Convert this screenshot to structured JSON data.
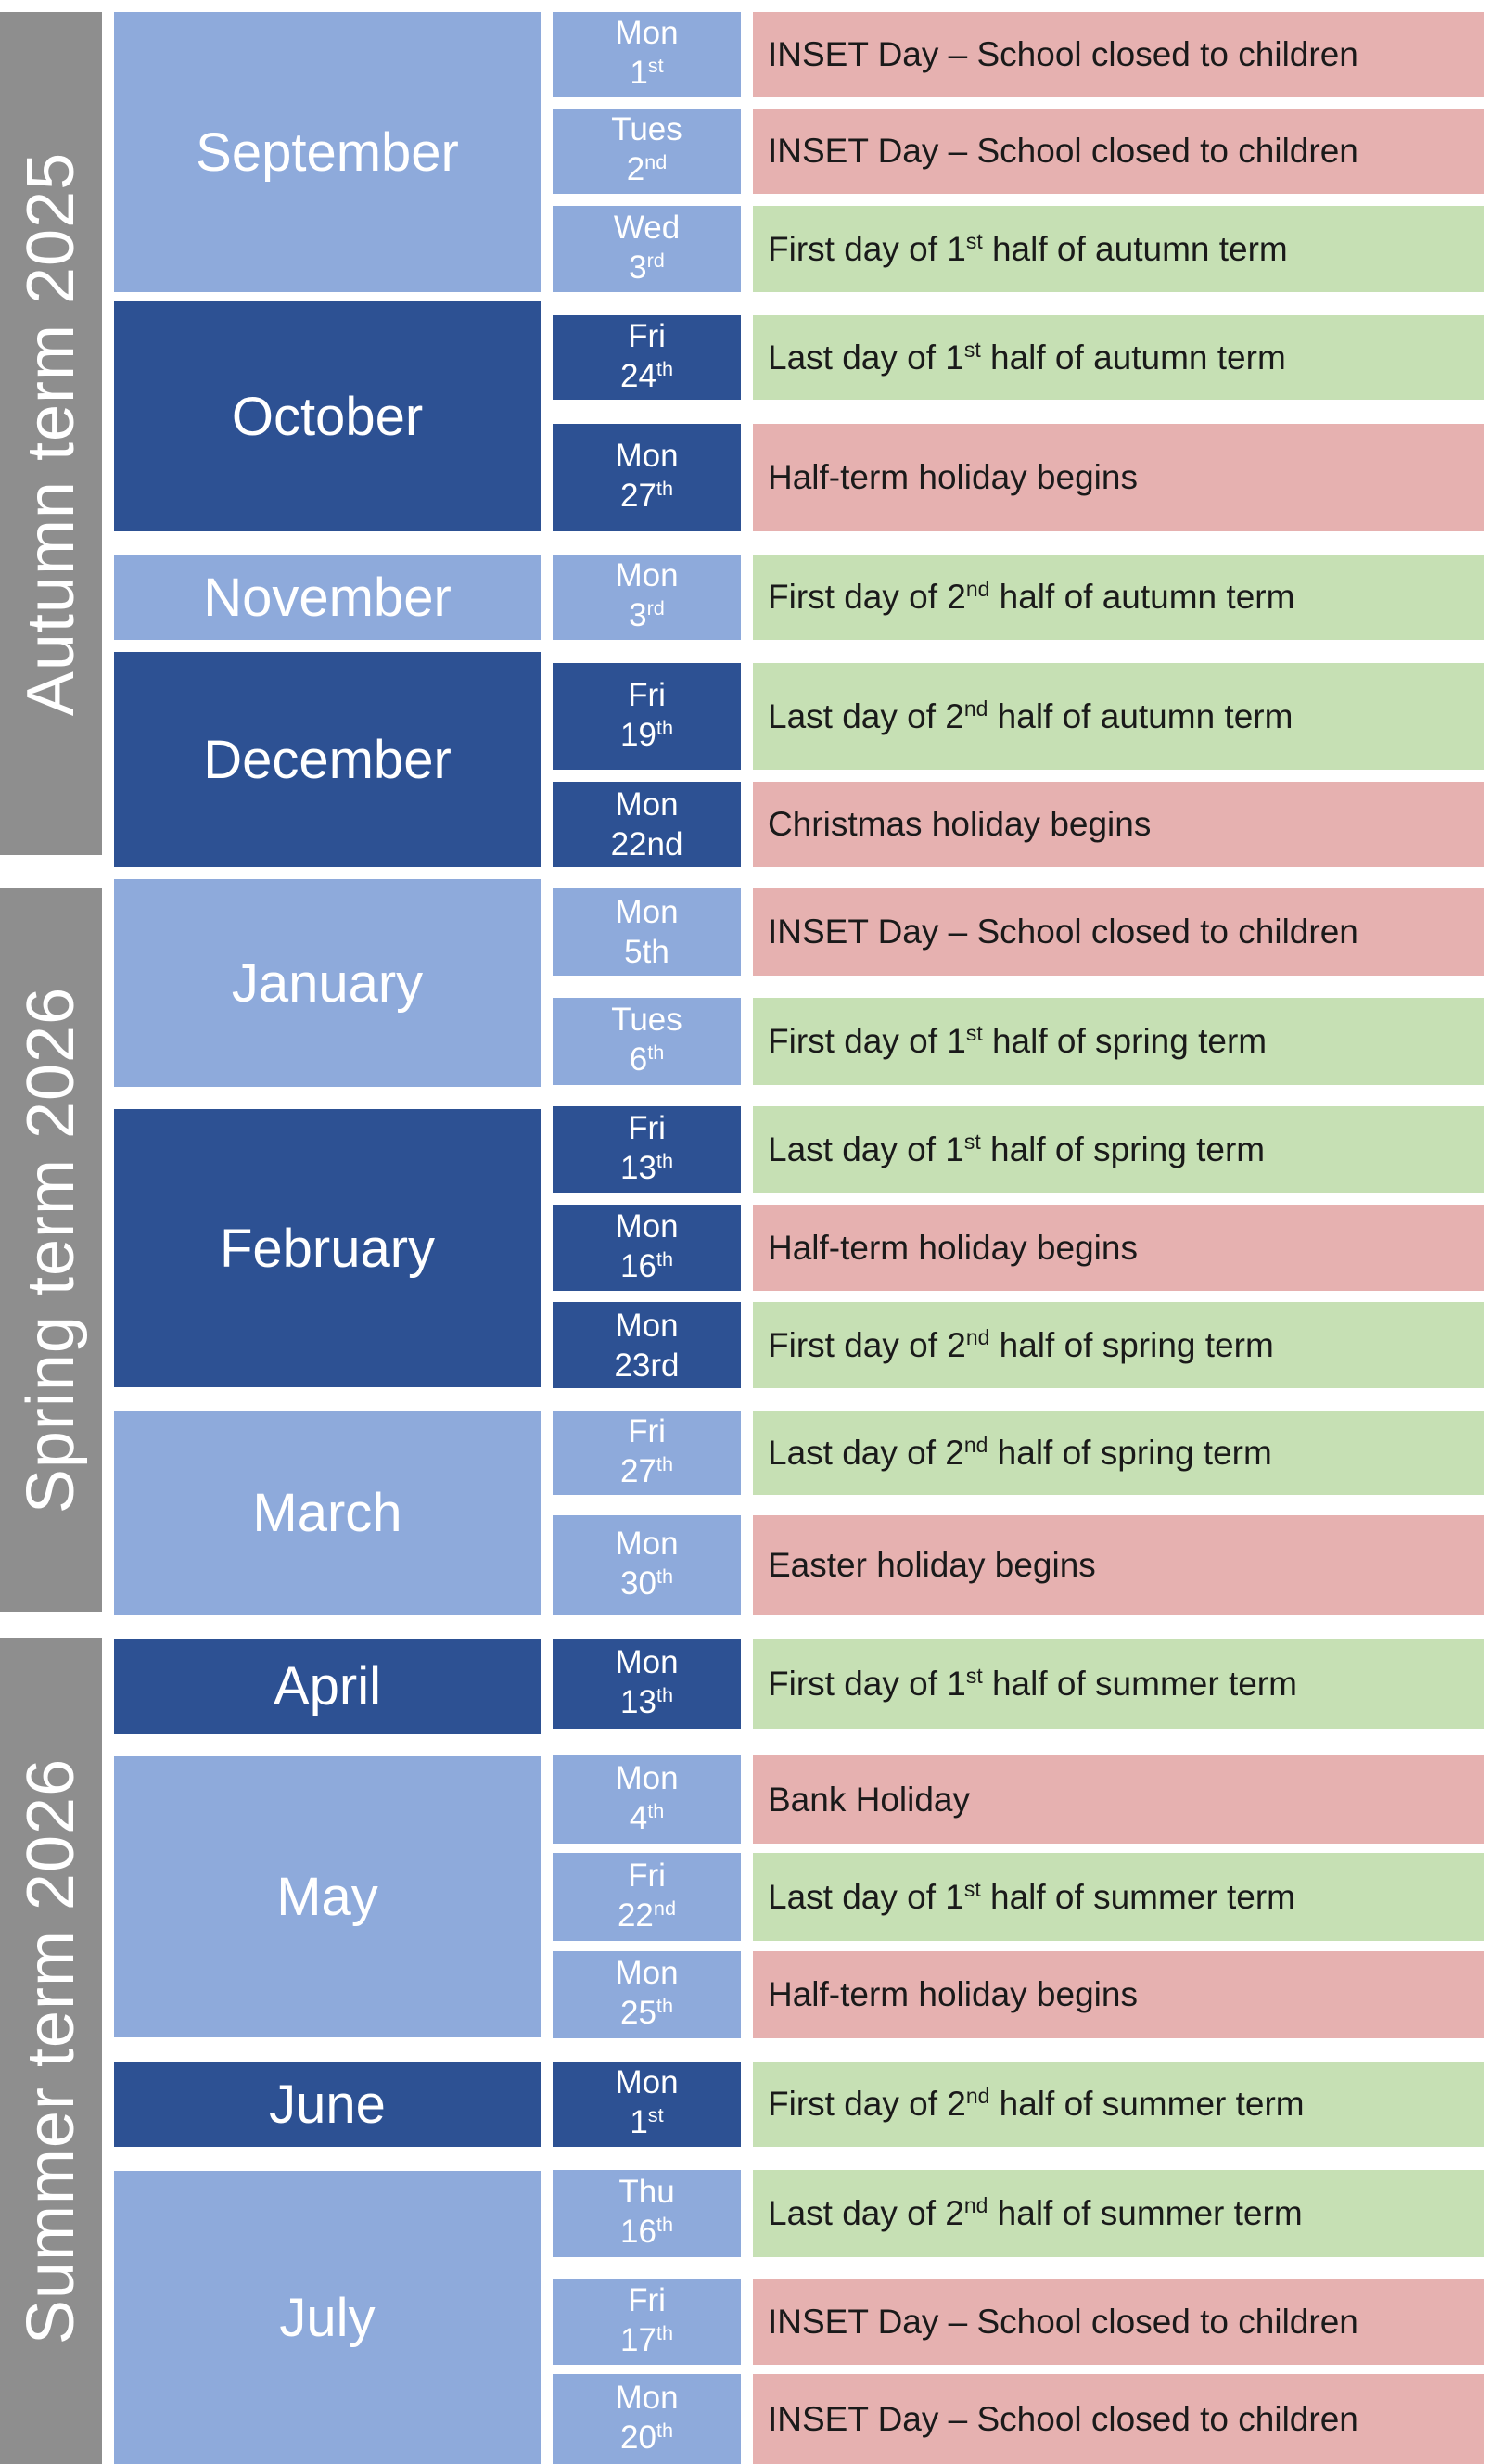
{
  "terms": [
    {
      "label": "Autumn term 2025"
    },
    {
      "label": "Spring term 2026"
    },
    {
      "label": "Summer term 2026"
    }
  ],
  "months": [
    {
      "name": "September",
      "shade": "light"
    },
    {
      "name": "October",
      "shade": "dark"
    },
    {
      "name": "November",
      "shade": "light"
    },
    {
      "name": "December",
      "shade": "dark"
    },
    {
      "name": "January",
      "shade": "light"
    },
    {
      "name": "February",
      "shade": "dark"
    },
    {
      "name": "March",
      "shade": "light"
    },
    {
      "name": "April",
      "shade": "dark"
    },
    {
      "name": "May",
      "shade": "light"
    },
    {
      "name": "June",
      "shade": "dark"
    },
    {
      "name": "July",
      "shade": "light"
    }
  ],
  "rows": [
    {
      "weekday": "Mon",
      "date": "1",
      "suffix": "st",
      "shade": "light",
      "event_parts": [
        "INSET Day – School closed to children"
      ],
      "event_type": "closure"
    },
    {
      "weekday": "Tues",
      "date": "2",
      "suffix": "nd",
      "shade": "light",
      "event_parts": [
        "INSET Day – School closed to children"
      ],
      "event_type": "closure"
    },
    {
      "weekday": "Wed",
      "date": "3",
      "suffix": "rd",
      "shade": "light",
      "event_parts": [
        "First day of 1",
        "st",
        " half of autumn term"
      ],
      "event_type": "term"
    },
    {
      "weekday": "Fri",
      "date": "24",
      "suffix": "th",
      "shade": "dark",
      "event_parts": [
        "Last day of 1",
        "st",
        " half of autumn term"
      ],
      "event_type": "term"
    },
    {
      "weekday": "Mon",
      "date": "27",
      "suffix": "th",
      "shade": "dark",
      "event_parts": [
        "Half-term holiday begins"
      ],
      "event_type": "closure"
    },
    {
      "weekday": "Mon",
      "date": "3",
      "suffix": "rd",
      "shade": "light",
      "event_parts": [
        "First day of 2",
        "nd",
        " half of autumn term"
      ],
      "event_type": "term"
    },
    {
      "weekday": "Fri",
      "date": "19",
      "suffix": "th",
      "shade": "dark",
      "event_parts": [
        "Last day of 2",
        "nd",
        " half of autumn term"
      ],
      "event_type": "term"
    },
    {
      "weekday": "Mon",
      "date": "22nd",
      "suffix": "",
      "shade": "dark",
      "event_parts": [
        "Christmas holiday begins"
      ],
      "event_type": "closure"
    },
    {
      "weekday": "Mon",
      "date": "5th",
      "suffix": "",
      "shade": "light",
      "event_parts": [
        "INSET Day – School closed to children"
      ],
      "event_type": "closure"
    },
    {
      "weekday": "Tues",
      "date": "6",
      "suffix": "th",
      "shade": "light",
      "event_parts": [
        "First day of 1",
        "st",
        " half of spring term"
      ],
      "event_type": "term"
    },
    {
      "weekday": "Fri",
      "date": "13",
      "suffix": "th",
      "shade": "dark",
      "event_parts": [
        "Last day of 1",
        "st",
        " half of spring term"
      ],
      "event_type": "term"
    },
    {
      "weekday": "Mon",
      "date": "16",
      "suffix": "th",
      "shade": "dark",
      "event_parts": [
        "Half-term holiday begins"
      ],
      "event_type": "closure"
    },
    {
      "weekday": "Mon",
      "date": "23rd",
      "suffix": "",
      "shade": "dark",
      "event_parts": [
        "First day of 2",
        "nd",
        " half of spring term"
      ],
      "event_type": "term"
    },
    {
      "weekday": "Fri",
      "date": "27",
      "suffix": "th",
      "shade": "light",
      "event_parts": [
        "Last day of 2",
        "nd",
        " half of spring term"
      ],
      "event_type": "term"
    },
    {
      "weekday": "Mon",
      "date": "30",
      "suffix": "th",
      "shade": "light",
      "event_parts": [
        "Easter holiday begins"
      ],
      "event_type": "closure"
    },
    {
      "weekday": "Mon",
      "date": "13",
      "suffix": "th",
      "shade": "dark",
      "event_parts": [
        "First day of 1",
        "st",
        " half of summer term"
      ],
      "event_type": "term"
    },
    {
      "weekday": "Mon",
      "date": "4",
      "suffix": "th",
      "shade": "light",
      "event_parts": [
        "Bank Holiday"
      ],
      "event_type": "closure"
    },
    {
      "weekday": "Fri",
      "date": "22",
      "suffix": "nd",
      "shade": "light",
      "event_parts": [
        "Last day of 1",
        "st",
        " half of summer term"
      ],
      "event_type": "term"
    },
    {
      "weekday": "Mon",
      "date": "25",
      "suffix": "th",
      "shade": "light",
      "event_parts": [
        "Half-term holiday begins"
      ],
      "event_type": "closure"
    },
    {
      "weekday": "Mon",
      "date": "1",
      "suffix": "st",
      "shade": "dark",
      "event_parts": [
        "First day of 2",
        "nd",
        " half of summer term"
      ],
      "event_type": "term"
    },
    {
      "weekday": "Thu",
      "date": "16",
      "suffix": "th",
      "shade": "light",
      "event_parts": [
        "Last day of 2",
        "nd",
        " half of summer term"
      ],
      "event_type": "term"
    },
    {
      "weekday": "Fri",
      "date": "17",
      "suffix": "th",
      "shade": "light",
      "event_parts": [
        "INSET Day – School closed to children"
      ],
      "event_type": "closure"
    },
    {
      "weekday": "Mon",
      "date": "20",
      "suffix": "th",
      "shade": "light",
      "event_parts": [
        "INSET Day – School closed  to children"
      ],
      "event_type": "closure"
    }
  ],
  "colors": {
    "term_band": "#8e8e8e",
    "month_light": "#8eaadb",
    "month_dark": "#2d5193",
    "term_event": "#c6e0b4",
    "closure_event": "#e6b1b0"
  }
}
